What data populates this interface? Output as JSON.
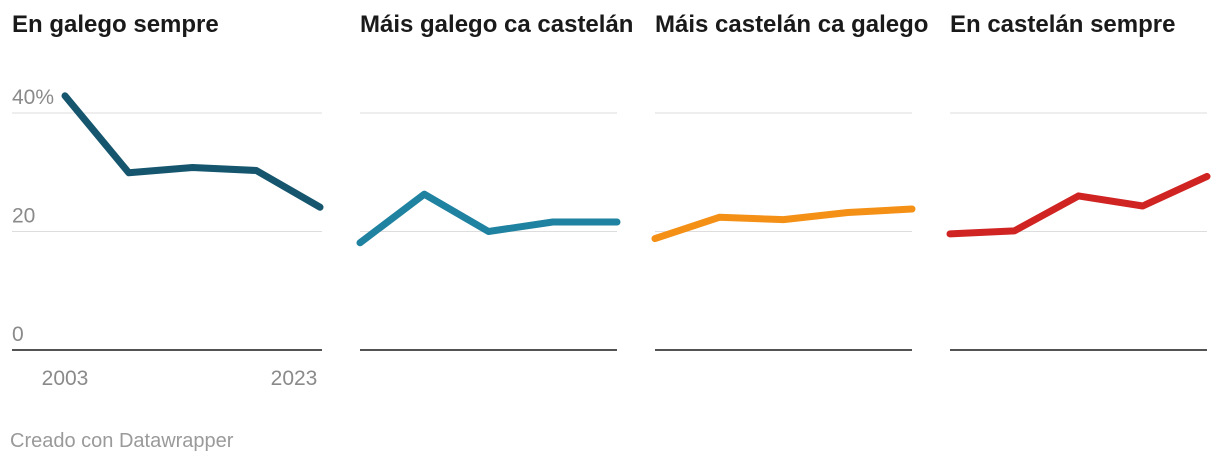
{
  "chart_data": [
    {
      "type": "line",
      "title": "En galego sempre",
      "x": [
        2003,
        2008,
        2013,
        2018,
        2023
      ],
      "values": [
        42.9,
        29.9,
        30.8,
        30.3,
        24.1
      ],
      "ylim": [
        0,
        40
      ],
      "yticks": [
        "0",
        "20",
        "40%"
      ],
      "xticks": [
        "2003",
        "2023"
      ],
      "color": "#15566e"
    },
    {
      "type": "line",
      "title": "Máis galego ca castelán",
      "x": [
        2003,
        2008,
        2013,
        2018,
        2023
      ],
      "values": [
        18.1,
        26.3,
        20.0,
        21.6,
        21.6
      ],
      "ylim": [
        0,
        40
      ],
      "color": "#1f82a0"
    },
    {
      "type": "line",
      "title": "Máis castelán ca galego",
      "x": [
        2003,
        2008,
        2013,
        2018,
        2023
      ],
      "values": [
        18.8,
        22.4,
        22.0,
        23.2,
        23.8
      ],
      "ylim": [
        0,
        40
      ],
      "color": "#f49016"
    },
    {
      "type": "line",
      "title": "En castelán sempre",
      "x": [
        2003,
        2008,
        2013,
        2018,
        2023
      ],
      "values": [
        19.6,
        20.1,
        26.0,
        24.3,
        29.3
      ],
      "ylim": [
        0,
        40
      ],
      "color": "#d02423"
    }
  ],
  "footer": {
    "credit": "Creado con Datawrapper"
  }
}
